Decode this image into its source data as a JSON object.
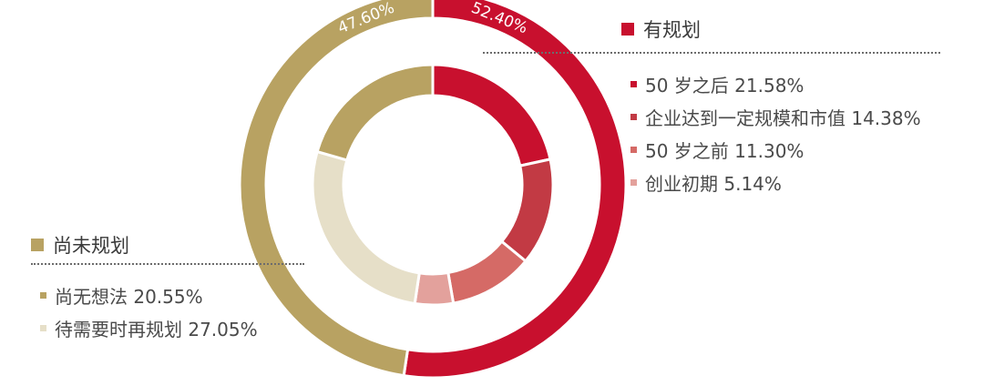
{
  "chart_data": {
    "type": "pie",
    "outer_ring": [
      {
        "name": "有规划",
        "value": 52.4,
        "label": "52.40%",
        "color": "#c8102e"
      },
      {
        "name": "尚未规划",
        "value": 47.6,
        "label": "47.60%",
        "color": "#b8a262"
      }
    ],
    "inner_ring": [
      {
        "name": "50 岁之后",
        "value": 21.58,
        "color": "#c8102e",
        "group": "有规划"
      },
      {
        "name": "企业达到一定规模和市值",
        "value": 14.38,
        "color": "#c23a44",
        "group": "有规划"
      },
      {
        "name": "50 岁之前",
        "value": 11.3,
        "color": "#d56a66",
        "group": "有规划"
      },
      {
        "name": "创业初期",
        "value": 5.14,
        "color": "#e3a19c",
        "group": "有规划"
      },
      {
        "name": "待需要时再规划",
        "value": 27.05,
        "color": "#e6dfc8",
        "group": "尚未规划"
      },
      {
        "name": "尚无想法",
        "value": 20.55,
        "color": "#b8a262",
        "group": "尚未规划"
      }
    ]
  },
  "legend": {
    "planned": {
      "title": "有规划",
      "color": "#c8102e",
      "items": [
        {
          "text": "50 岁之后 21.58%",
          "color": "#c8102e"
        },
        {
          "text": "企业达到一定规模和市值 14.38%",
          "color": "#c23a44"
        },
        {
          "text": "50 岁之前 11.30%",
          "color": "#d56a66"
        },
        {
          "text": "创业初期  5.14%",
          "color": "#e3a19c"
        }
      ]
    },
    "unplanned": {
      "title": "尚未规划",
      "color": "#b8a262",
      "items": [
        {
          "text": "尚无想法 20.55%",
          "color": "#b8a262"
        },
        {
          "text": "待需要时再规划 27.05%",
          "color": "#e6dfc8"
        }
      ]
    }
  }
}
